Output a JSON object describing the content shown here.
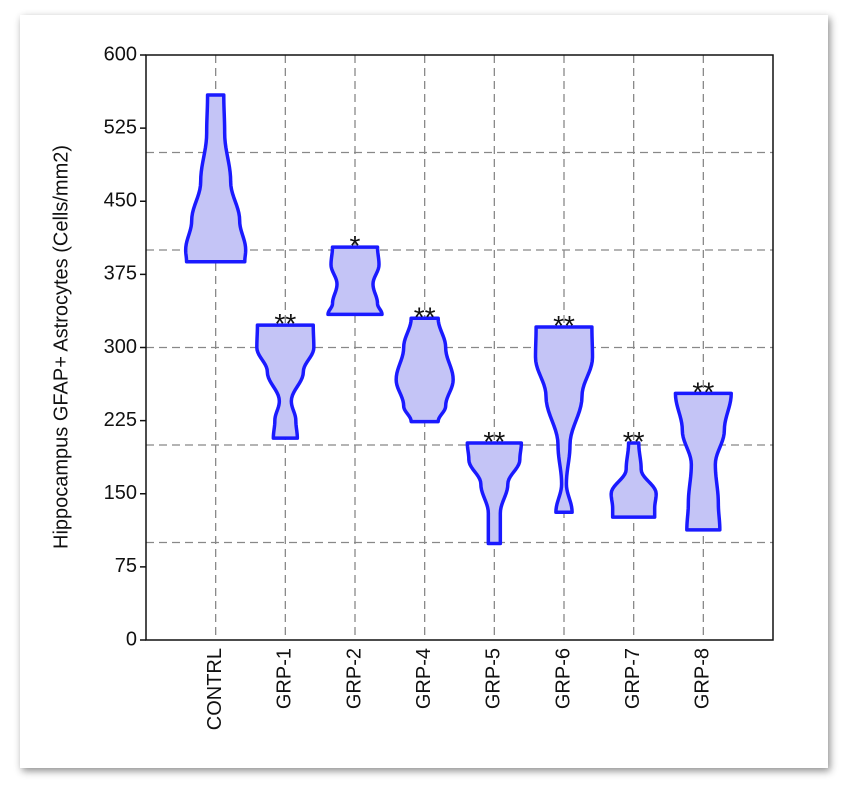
{
  "chart_data": {
    "type": "violin",
    "y_label": "Hippocampus GFAP+ Astrocytes (Cells/mm2)",
    "categories": [
      "CONTRL",
      "GRP-1",
      "GRP-2",
      "GRP-4",
      "GRP-5",
      "GRP-6",
      "GRP-7",
      "GRP-8"
    ],
    "violins": [
      [
        [
          559,
          0.27
        ],
        [
          520,
          0.3
        ],
        [
          470,
          0.5
        ],
        [
          430,
          0.8
        ],
        [
          400,
          1.0
        ],
        [
          388,
          0.97
        ]
      ],
      [
        [
          323,
          0.93
        ],
        [
          300,
          0.95
        ],
        [
          275,
          0.6
        ],
        [
          245,
          0.2
        ],
        [
          225,
          0.35
        ],
        [
          207,
          0.4
        ]
      ],
      [
        [
          403,
          0.75
        ],
        [
          385,
          0.8
        ],
        [
          365,
          0.6
        ],
        [
          345,
          0.75
        ],
        [
          334,
          0.9
        ]
      ],
      [
        [
          330,
          0.45
        ],
        [
          300,
          0.7
        ],
        [
          267,
          0.95
        ],
        [
          240,
          0.7
        ],
        [
          224,
          0.45
        ]
      ],
      [
        [
          202,
          0.9
        ],
        [
          185,
          0.85
        ],
        [
          160,
          0.45
        ],
        [
          130,
          0.2
        ],
        [
          110,
          0.2
        ],
        [
          99,
          0.2
        ]
      ],
      [
        [
          321,
          0.93
        ],
        [
          290,
          0.95
        ],
        [
          250,
          0.6
        ],
        [
          200,
          0.2
        ],
        [
          160,
          0.08
        ],
        [
          131,
          0.27
        ]
      ],
      [
        [
          202,
          0.17
        ],
        [
          175,
          0.25
        ],
        [
          150,
          0.75
        ],
        [
          135,
          0.7
        ],
        [
          126,
          0.7
        ]
      ],
      [
        [
          253,
          0.93
        ],
        [
          215,
          0.7
        ],
        [
          180,
          0.4
        ],
        [
          140,
          0.5
        ],
        [
          113,
          0.55
        ]
      ]
    ],
    "significance": [
      null,
      "**",
      "*",
      "**",
      "**",
      "**",
      "**",
      "**"
    ],
    "color": "#1a1aff",
    "fill": "#c4c4f6",
    "ylim": [
      0,
      600
    ],
    "yticks": [
      0,
      75,
      150,
      225,
      300,
      375,
      450,
      525,
      600
    ],
    "ygrid": [
      100,
      200,
      300,
      400,
      500
    ],
    "grid": true
  }
}
